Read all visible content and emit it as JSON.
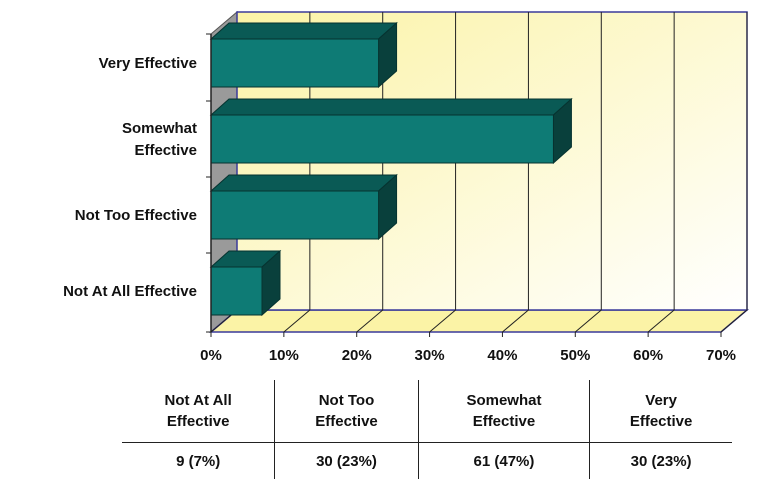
{
  "chart_data": {
    "type": "bar",
    "orientation": "horizontal",
    "style": "3d",
    "categories": [
      "Very Effective",
      "Somewhat Effective",
      "Not Too Effective",
      "Not At All Effective"
    ],
    "category_lines": [
      [
        "Very Effective"
      ],
      [
        "Somewhat",
        "Effective"
      ],
      [
        "Not Too Effective"
      ],
      [
        "Not At All Effective"
      ]
    ],
    "values": [
      23,
      47,
      23,
      7
    ],
    "xlim": [
      0,
      70
    ],
    "xticks": [
      "0%",
      "10%",
      "20%",
      "30%",
      "40%",
      "50%",
      "60%",
      "70%"
    ],
    "grid": "vertical",
    "bar_color": "#0E7B75",
    "bar_side_color": "#09403C",
    "bar_top_color": "#0A5A55",
    "wall_gradient": [
      "#FBF3A6",
      "#FFFFFF"
    ]
  },
  "summary_table": {
    "headers": [
      [
        "Not At All",
        "Effective"
      ],
      [
        "Not Too",
        "Effective"
      ],
      [
        "Somewhat",
        "Effective"
      ],
      [
        "Very",
        "Effective"
      ]
    ],
    "values": [
      "9 (7%)",
      "30 (23%)",
      "61  (47%)",
      "30  (23%)"
    ]
  }
}
